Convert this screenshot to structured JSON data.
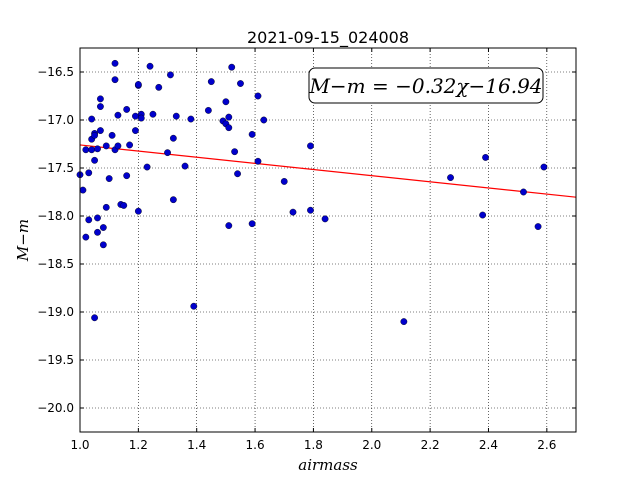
{
  "chart_data": {
    "type": "scatter",
    "title": "2021-09-15_024008",
    "xlabel": "airmass",
    "ylabel": "M−m",
    "xlim": [
      1.0,
      2.7
    ],
    "ylim": [
      -20.25,
      -16.25
    ],
    "y_inverted": true,
    "grid": true,
    "xticks": [
      1.0,
      1.2,
      1.4,
      1.6,
      1.8,
      2.0,
      2.2,
      2.4,
      2.6
    ],
    "xtick_labels": [
      "1.0",
      "1.2",
      "1.4",
      "1.6",
      "1.8",
      "2.0",
      "2.2",
      "2.4",
      "2.6"
    ],
    "yticks": [
      -16.5,
      -17.0,
      -17.5,
      -18.0,
      -18.5,
      -19.0,
      -19.5,
      -20.0
    ],
    "ytick_labels": [
      "−16.5",
      "−17.0",
      "−17.5",
      "−18.0",
      "−18.5",
      "−19.0",
      "−19.5",
      "−20.0"
    ],
    "annotation": "M−m = −0.32χ−16.94",
    "fit": {
      "slope": -0.32,
      "intercept": -16.94,
      "color": "#ff0000"
    },
    "marker_color": "#0000cc",
    "series": [
      {
        "points": [
          [
            1.0,
            -17.57
          ],
          [
            1.01,
            -17.73
          ],
          [
            1.02,
            -18.22
          ],
          [
            1.02,
            -17.31
          ],
          [
            1.03,
            -17.55
          ],
          [
            1.03,
            -18.04
          ],
          [
            1.04,
            -17.31
          ],
          [
            1.04,
            -17.2
          ],
          [
            1.04,
            -16.99
          ],
          [
            1.05,
            -17.14
          ],
          [
            1.05,
            -17.16
          ],
          [
            1.05,
            -17.42
          ],
          [
            1.05,
            -19.06
          ],
          [
            1.06,
            -18.02
          ],
          [
            1.06,
            -18.17
          ],
          [
            1.06,
            -17.3
          ],
          [
            1.07,
            -16.86
          ],
          [
            1.07,
            -16.78
          ],
          [
            1.07,
            -17.11
          ],
          [
            1.08,
            -18.12
          ],
          [
            1.08,
            -18.3
          ],
          [
            1.09,
            -17.27
          ],
          [
            1.09,
            -17.91
          ],
          [
            1.1,
            -17.61
          ],
          [
            1.11,
            -17.16
          ],
          [
            1.12,
            -16.41
          ],
          [
            1.12,
            -16.58
          ],
          [
            1.12,
            -17.31
          ],
          [
            1.13,
            -16.95
          ],
          [
            1.13,
            -17.27
          ],
          [
            1.14,
            -17.88
          ],
          [
            1.15,
            -17.89
          ],
          [
            1.16,
            -16.89
          ],
          [
            1.16,
            -17.58
          ],
          [
            1.17,
            -17.26
          ],
          [
            1.19,
            -16.96
          ],
          [
            1.19,
            -17.11
          ],
          [
            1.2,
            -17.95
          ],
          [
            1.2,
            -16.64
          ],
          [
            1.2,
            -16.63
          ],
          [
            1.21,
            -16.94
          ],
          [
            1.21,
            -16.98
          ],
          [
            1.23,
            -17.49
          ],
          [
            1.24,
            -16.44
          ],
          [
            1.25,
            -16.94
          ],
          [
            1.27,
            -16.66
          ],
          [
            1.3,
            -17.34
          ],
          [
            1.31,
            -16.53
          ],
          [
            1.32,
            -17.83
          ],
          [
            1.32,
            -17.19
          ],
          [
            1.33,
            -16.96
          ],
          [
            1.36,
            -17.48
          ],
          [
            1.38,
            -16.99
          ],
          [
            1.39,
            -18.94
          ],
          [
            1.44,
            -16.9
          ],
          [
            1.45,
            -16.6
          ],
          [
            1.49,
            -17.01
          ],
          [
            1.5,
            -17.04
          ],
          [
            1.5,
            -16.81
          ],
          [
            1.51,
            -16.97
          ],
          [
            1.51,
            -17.08
          ],
          [
            1.51,
            -18.1
          ],
          [
            1.52,
            -16.45
          ],
          [
            1.53,
            -17.33
          ],
          [
            1.54,
            -17.56
          ],
          [
            1.55,
            -16.62
          ],
          [
            1.59,
            -17.15
          ],
          [
            1.59,
            -18.08
          ],
          [
            1.61,
            -16.75
          ],
          [
            1.61,
            -17.43
          ],
          [
            1.63,
            -17.0
          ],
          [
            1.7,
            -17.64
          ],
          [
            1.73,
            -17.96
          ],
          [
            1.79,
            -17.27
          ],
          [
            1.79,
            -17.94
          ],
          [
            1.84,
            -18.03
          ],
          [
            2.11,
            -19.1
          ],
          [
            2.27,
            -17.6
          ],
          [
            2.38,
            -17.99
          ],
          [
            2.39,
            -17.39
          ],
          [
            2.52,
            -17.75
          ],
          [
            2.57,
            -18.11
          ],
          [
            2.59,
            -17.49
          ]
        ]
      }
    ]
  }
}
